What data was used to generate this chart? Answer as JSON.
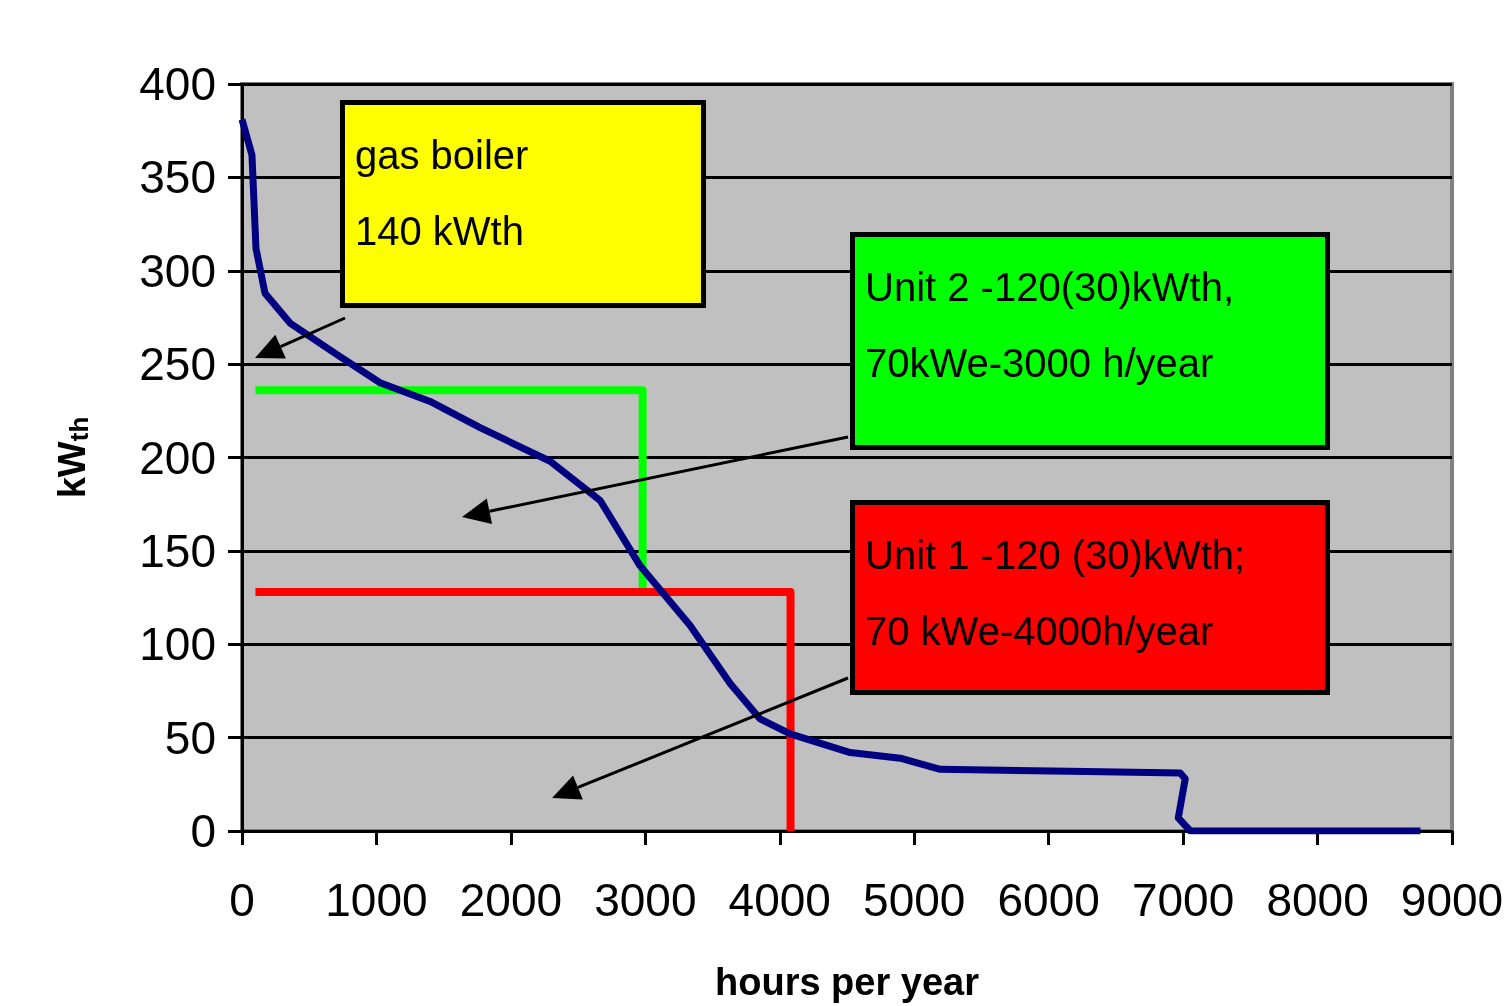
{
  "chart_data": {
    "type": "line",
    "xlabel": "hours per year",
    "ylabel": "kW$_{th}$",
    "xlim": [
      0,
      9000
    ],
    "xticks": [
      0,
      1000,
      2000,
      3000,
      4000,
      5000,
      6000,
      7000,
      8000,
      9000
    ],
    "ylim": [
      0,
      400
    ],
    "yticks": [
      0,
      50,
      100,
      150,
      200,
      250,
      300,
      350,
      400
    ],
    "grid": "y",
    "marker": "none",
    "line_style": "solid",
    "series": [
      {
        "color": "#000080",
        "x": [
          0,
          74,
          104,
          171,
          357,
          729,
          1027,
          1399,
          1771,
          2292,
          2664,
          2961,
          3333,
          3631,
          3854,
          4077,
          4524,
          4896,
          5193,
          6161,
          6979,
          7016,
          6964,
          7054,
          7277,
          7872,
          8244,
          8765
        ],
        "values": [
          381,
          362,
          312,
          288,
          272,
          254,
          240,
          230,
          216,
          198,
          177,
          142,
          110,
          79,
          60,
          52,
          42,
          39,
          33,
          32,
          31,
          28,
          7,
          0,
          0,
          0,
          0,
          0
        ]
      },
      {
        "color": "#00ff00",
        "x": [
          100,
          2980,
          2980
        ],
        "values": [
          236,
          236,
          128
        ]
      },
      {
        "color": "#ff0000",
        "x": [
          100,
          4080,
          4080
        ],
        "values": [
          128,
          128,
          0
        ]
      }
    ],
    "annotations": [
      "gas boiler\n140 kWth",
      "Unit 2 -120(30)kWth,\n70kWe-3000 h/year",
      "Unit 1 -120 (30)kWth;\n70 kWe-4000h/year"
    ]
  }
}
